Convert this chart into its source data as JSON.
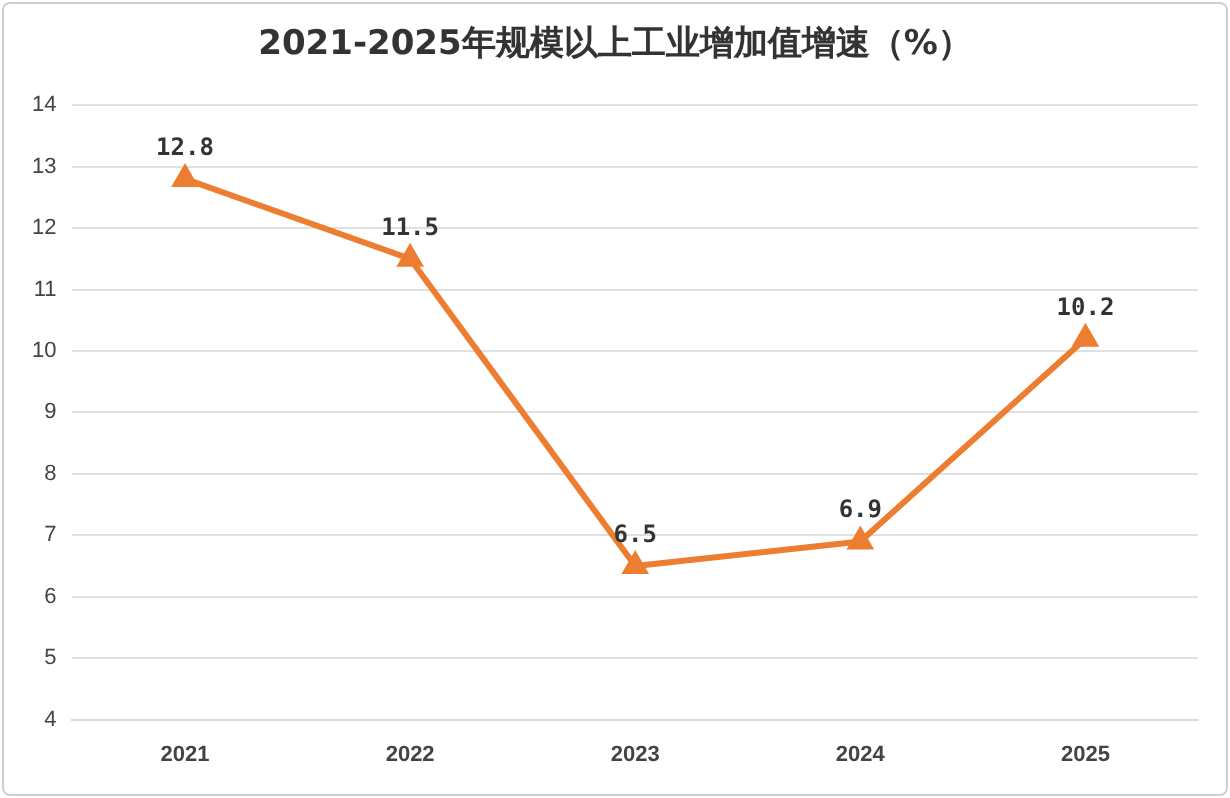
{
  "chart_data": {
    "type": "line",
    "title": "2021-2025年规模以上工业增加值增速（%）",
    "categories": [
      "2021",
      "2022",
      "2023",
      "2024",
      "2025"
    ],
    "series": [
      {
        "color": "#ed7d31",
        "values": [
          12.8,
          11.5,
          6.5,
          6.9,
          10.2
        ]
      }
    ],
    "ylim": [
      4,
      14
    ],
    "yticks": [
      4,
      5,
      6,
      7,
      8,
      9,
      10,
      11,
      12,
      13,
      14
    ],
    "grid": "y",
    "legend": false,
    "marker": "triangle",
    "line_style": "solid",
    "data_labels": true
  }
}
